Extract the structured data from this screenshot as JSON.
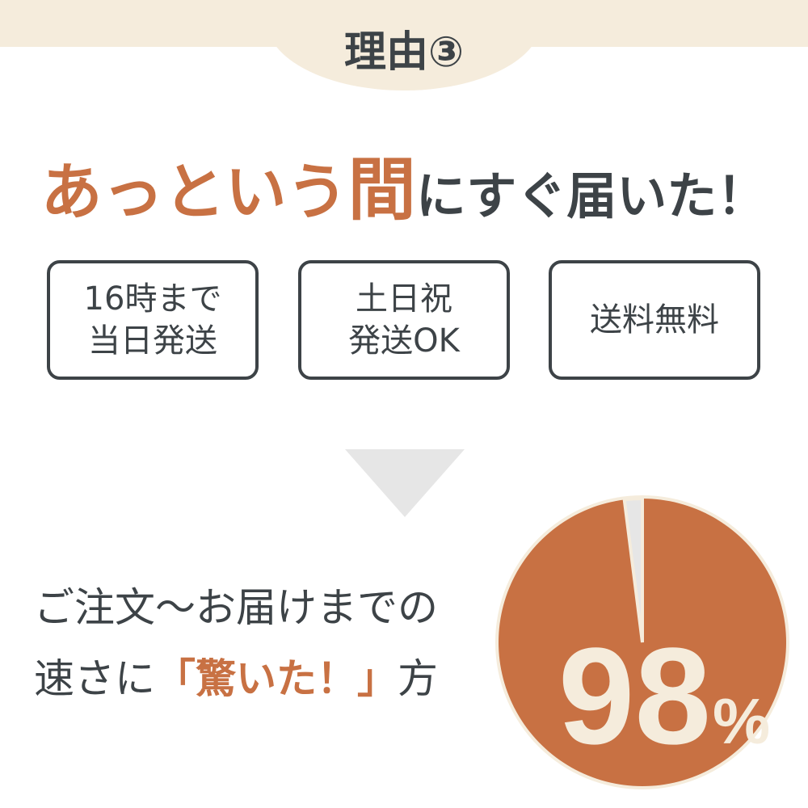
{
  "header": {
    "title": "理由③"
  },
  "headline": {
    "accent1": "あっという",
    "accent2": "間",
    "rest": "にすぐ届いた！"
  },
  "features": [
    {
      "label": "16時まで\n当日発送"
    },
    {
      "label": "土日祝\n発送OK"
    },
    {
      "label": "送料無料"
    }
  ],
  "caption": {
    "line1": "ご注文〜お届けまでの",
    "line2_pre": "速さに",
    "line2_hl": "「驚いた！」",
    "line2_post": "方"
  },
  "colors": {
    "accent": "#c87143",
    "text": "#3d4347",
    "beige": "#f5ecdc",
    "gray": "#e6e6e6"
  },
  "chart_data": {
    "type": "pie",
    "values": [
      98,
      2
    ],
    "label": "98%",
    "value_text": "98",
    "unit": "%"
  }
}
